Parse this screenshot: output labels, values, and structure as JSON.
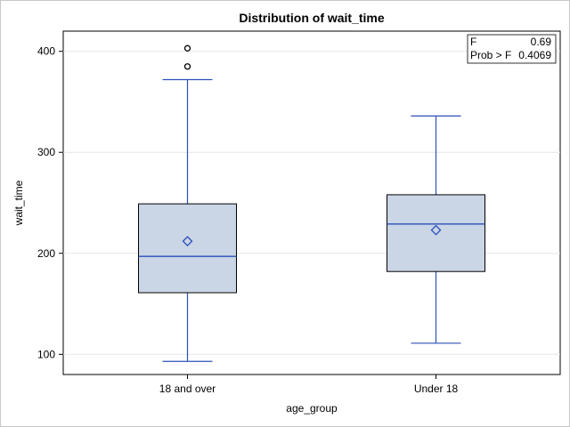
{
  "chart_data": {
    "type": "box",
    "title": "Distribution of wait_time",
    "xlabel": "age_group",
    "ylabel": "wait_time",
    "ylim": [
      80,
      420
    ],
    "yticks": [
      100,
      200,
      300,
      400
    ],
    "grid": true,
    "categories": [
      "18 and over",
      "Under 18"
    ],
    "boxes": [
      {
        "category": "18 and over",
        "min": 93,
        "q1": 161,
        "median": 197,
        "q3": 249,
        "max": 372,
        "mean": 212,
        "outliers": [
          385,
          403
        ]
      },
      {
        "category": "Under 18",
        "min": 111,
        "q1": 182,
        "median": 229,
        "q3": 258,
        "max": 336,
        "mean": 223,
        "outliers": []
      }
    ],
    "inset": {
      "rows": [
        {
          "label": "F",
          "value": "0.69"
        },
        {
          "label": "Prob > F",
          "value": "0.4069"
        }
      ]
    },
    "colors": {
      "box_fill": "#cad5e6",
      "box_edge": "#000000",
      "line": "#2a50b8",
      "mean_marker": "#2a50b8",
      "grid": "#e6e6e6"
    }
  }
}
